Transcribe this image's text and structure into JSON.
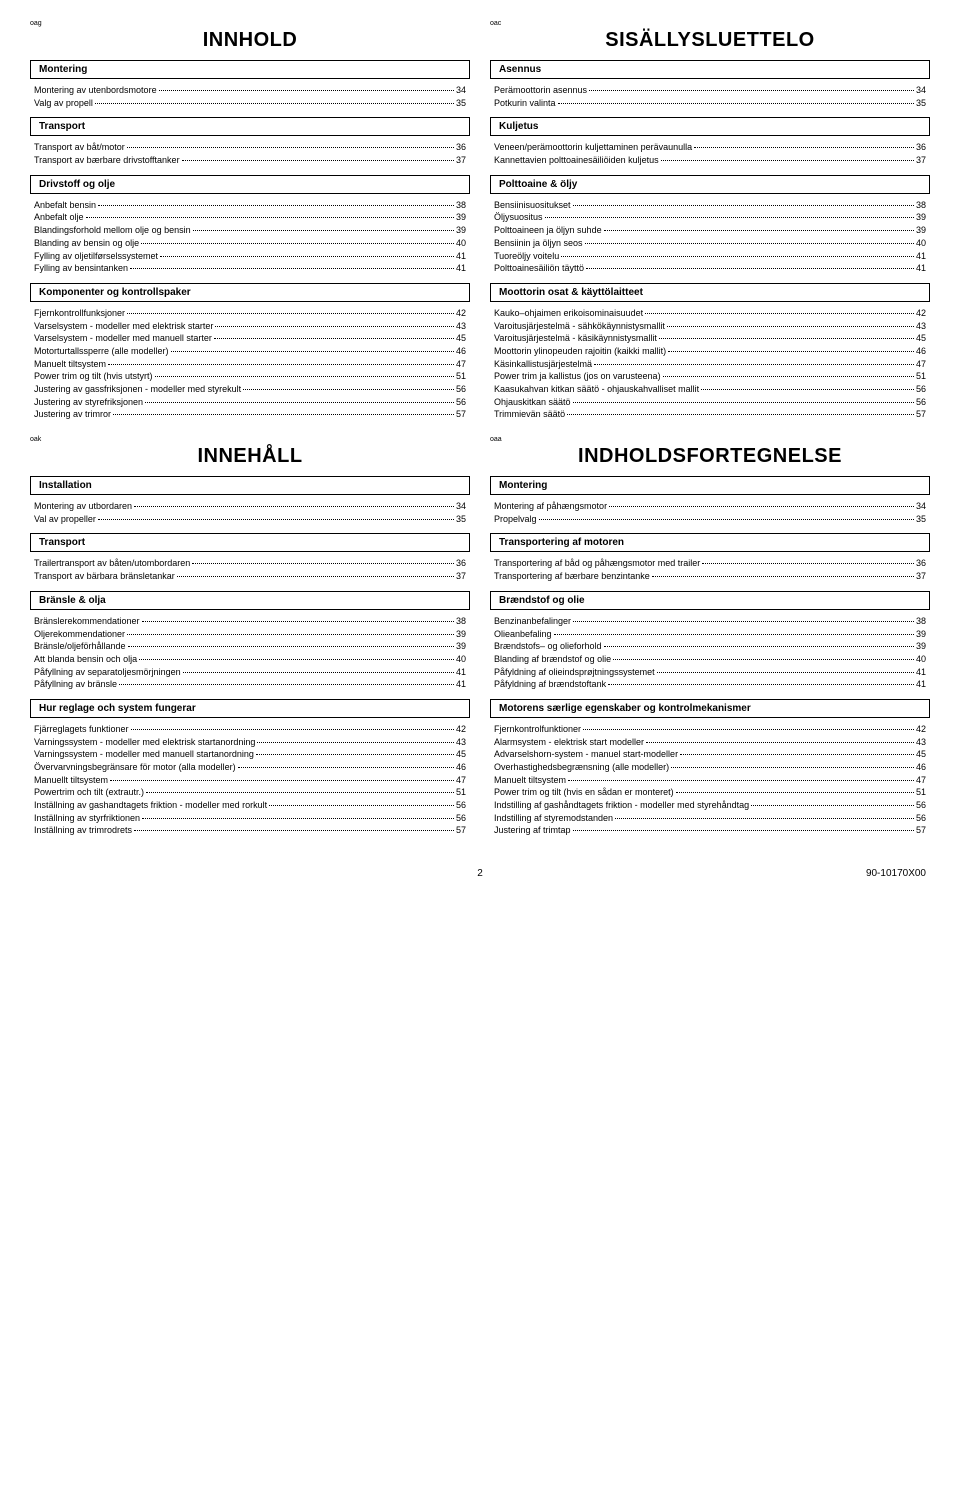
{
  "tags": {
    "oag": "oag",
    "oac": "oac",
    "oak": "oak",
    "oaa": "oaa"
  },
  "titles": {
    "innhold": "INNHOLD",
    "sisallys": "SISÄLLYSLUETTELO",
    "innehall": "INNEHÅLL",
    "indholds": "INDHOLDSFORTEGNELSE"
  },
  "nor": {
    "s1": "Montering",
    "s1_items": [
      {
        "label": "Montering av utenbordsmotore",
        "page": "34"
      },
      {
        "label": "Valg av propell",
        "page": "35"
      }
    ],
    "s2": "Transport",
    "s2_items": [
      {
        "label": "Transport av båt/motor",
        "page": "36"
      },
      {
        "label": "Transport av bærbare drivstofftanker",
        "page": "37"
      }
    ],
    "s3": "Drivstoff og olje",
    "s3_items": [
      {
        "label": "Anbefalt bensin",
        "page": "38"
      },
      {
        "label": "Anbefalt olje",
        "page": "39"
      },
      {
        "label": "Blandingsforhold mellom olje og bensin",
        "page": "39"
      },
      {
        "label": "Blanding av bensin og olje",
        "page": "40"
      },
      {
        "label": "Fylling av oljetilførselssystemet",
        "page": "41"
      },
      {
        "label": "Fylling av bensintanken",
        "page": "41"
      }
    ],
    "s4": "Komponenter og kontrollspaker",
    "s4_items": [
      {
        "label": "Fjernkontrollfunksjoner",
        "page": "42"
      },
      {
        "label": "Varselsystem - modeller med elektrisk starter",
        "page": "43"
      },
      {
        "label": "Varselsystem - modeller med manuell starter",
        "page": "45"
      },
      {
        "label": "Motorturtallssperre (alle modeller)",
        "page": "46"
      },
      {
        "label": "Manuelt tiltsystem",
        "page": "47"
      },
      {
        "label": "Power trim og tilt (hvis utstyrt)",
        "page": "51"
      },
      {
        "label": "Justering av gassfriksjonen - modeller med styrekult",
        "page": "56"
      },
      {
        "label": "Justering av styrefriksjonen",
        "page": "56"
      },
      {
        "label": "Justering av trimror",
        "page": "57"
      }
    ]
  },
  "fin": {
    "s1": "Asennus",
    "s1_items": [
      {
        "label": "Perämoottorin asennus",
        "page": "34"
      },
      {
        "label": "Potkurin valinta",
        "page": "35"
      }
    ],
    "s2": "Kuljetus",
    "s2_items": [
      {
        "label": "Veneen/perämoottorin kuljettaminen perävaunulla",
        "page": "36"
      },
      {
        "label": "Kannettavien polttoainesäiliöiden kuljetus",
        "page": "37"
      }
    ],
    "s3": "Polttoaine & öljy",
    "s3_items": [
      {
        "label": "Bensiinisuositukset",
        "page": "38"
      },
      {
        "label": "Öljysuositus",
        "page": "39"
      },
      {
        "label": "Polttoaineen ja öljyn suhde",
        "page": "39"
      },
      {
        "label": "Bensiinin ja öljyn seos",
        "page": "40"
      },
      {
        "label": "Tuoreöljy voitelu",
        "page": "41"
      },
      {
        "label": "Polttoainesäiliön täyttö",
        "page": "41"
      }
    ],
    "s4": "Moottorin osat & käyttölaitteet",
    "s4_items": [
      {
        "label": "Kauko–ohjaimen erikoisominaisuudet",
        "page": "42"
      },
      {
        "label": "Varoitusjärjestelmä - sähkökäynnistysmallit",
        "page": "43"
      },
      {
        "label": "Varoitusjärjestelmä - käsikäynnistysmallit",
        "page": "45"
      },
      {
        "label": "Moottorin ylinopeuden rajoitin (kaikki mallit)",
        "page": "46"
      },
      {
        "label": "Käsinkallistusjärjestelmä",
        "page": "47"
      },
      {
        "label": "Power trim ja kallistus (jos on varusteena)",
        "page": "51"
      },
      {
        "label": "Kaasukahvan kitkan säätö - ohjauskahvalliset mallit",
        "page": "56"
      },
      {
        "label": "Ohjauskitkan säätö",
        "page": "56"
      },
      {
        "label": "Trimmievän säätö",
        "page": "57"
      }
    ]
  },
  "swe": {
    "s1": "Installation",
    "s1_items": [
      {
        "label": "Montering av utbordaren",
        "page": "34"
      },
      {
        "label": "Val av propeller",
        "page": "35"
      }
    ],
    "s2": "Transport",
    "s2_items": [
      {
        "label": "Trailertransport av båten/utombordaren",
        "page": "36"
      },
      {
        "label": "Transport av bärbara bränsletankar",
        "page": "37"
      }
    ],
    "s3": "Bränsle & olja",
    "s3_items": [
      {
        "label": "Bränslerekommendationer",
        "page": "38"
      },
      {
        "label": "Oljerekommendationer",
        "page": "39"
      },
      {
        "label": "Bränsle/oljeförhållande",
        "page": "39"
      },
      {
        "label": "Att blanda bensin och olja",
        "page": "40"
      },
      {
        "label": "Påfyllning av separatoljesmörjningen",
        "page": "41"
      },
      {
        "label": "Påfyllning av bränsle",
        "page": "41"
      }
    ],
    "s4": "Hur reglage och system fungerar",
    "s4_items": [
      {
        "label": "Fjärreglagets funktioner",
        "page": "42"
      },
      {
        "label": "Varningssystem - modeller med elektrisk startanordning",
        "page": "43"
      },
      {
        "label": "Varningssystem - modeller med manuell startanordning",
        "page": "45"
      },
      {
        "label": "Övervarvningsbegränsare för motor (alla modeller)",
        "page": "46"
      },
      {
        "label": "Manuellt tiltsystem",
        "page": "47"
      },
      {
        "label": "Powertrim och tilt (extrautr.)",
        "page": "51"
      },
      {
        "label": "Inställning av gashandtagets friktion - modeller med rorkult",
        "page": "56"
      },
      {
        "label": "Inställning av styrfriktionen",
        "page": "56"
      },
      {
        "label": "Inställning av trimrodrets",
        "page": "57"
      }
    ]
  },
  "dan": {
    "s1": "Montering",
    "s1_items": [
      {
        "label": "Montering af påhængsmotor",
        "page": "34"
      },
      {
        "label": "Propelvalg",
        "page": "35"
      }
    ],
    "s2": "Transportering af motoren",
    "s2_items": [
      {
        "label": "Transportering af båd og påhængsmotor med trailer",
        "page": "36"
      },
      {
        "label": "Transportering af bærbare benzintanke",
        "page": "37"
      }
    ],
    "s3": "Brændstof og olie",
    "s3_items": [
      {
        "label": "Benzinanbefalinger",
        "page": "38"
      },
      {
        "label": "Olieanbefaling",
        "page": "39"
      },
      {
        "label": "Brændstofs– og olieforhold",
        "page": "39"
      },
      {
        "label": "Blanding af brændstof og olie",
        "page": "40"
      },
      {
        "label": "Påfyldning af olieindsprøjtningssystemet",
        "page": "41"
      },
      {
        "label": "Påfyldning af brændstoftank",
        "page": "41"
      }
    ],
    "s4": "Motorens særlige egenskaber og kontrolmekanismer",
    "s4_items": [
      {
        "label": "Fjernkontrolfunktioner",
        "page": "42"
      },
      {
        "label": "Alarmsystem - elektrisk start modeller",
        "page": "43"
      },
      {
        "label": "Advarselshorn-system - manuel start-modeller",
        "page": "45"
      },
      {
        "label": "Overhastighedsbegrænsning (alle modeller)",
        "page": "46"
      },
      {
        "label": "Manuelt tiltsystem",
        "page": "47"
      },
      {
        "label": "Power trim og tilt (hvis en sådan er monteret)",
        "page": "51"
      },
      {
        "label": "Indstilling af gashåndtagets friktion - modeller med styrehåndtag",
        "page": "56"
      },
      {
        "label": "Indstilling af styremodstanden",
        "page": "56"
      },
      {
        "label": "Justering af trimtap",
        "page": "57"
      }
    ]
  },
  "footer": {
    "page": "2",
    "code": "90-10170X00"
  }
}
